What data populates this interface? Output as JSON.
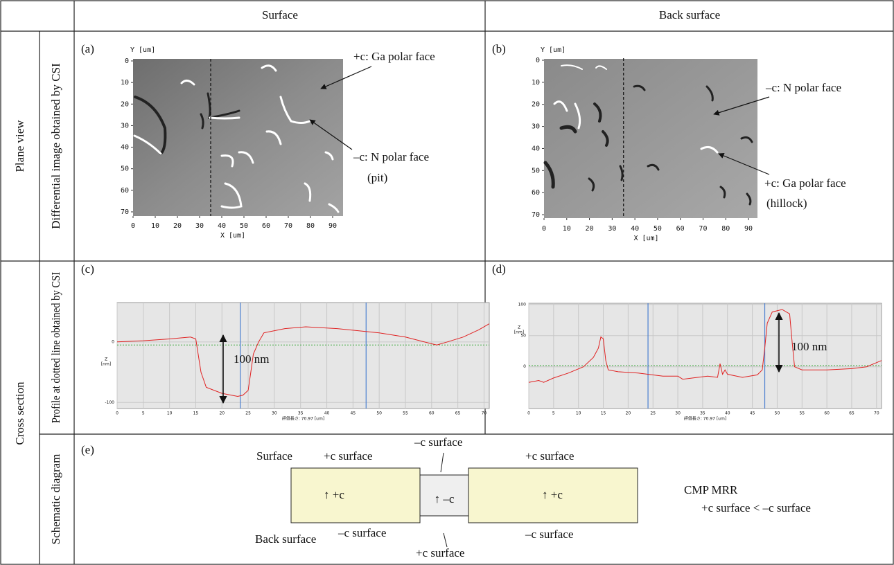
{
  "header": {
    "col1": "Surface",
    "col2": "Back surface"
  },
  "rows": {
    "plane_view": "Plane view",
    "cross_section": "Cross section",
    "differential": "Differential image obtained by CSI",
    "profile": "Profile at dotted line obtained by CSI",
    "schematic": "Schematic diagram"
  },
  "panels": {
    "a": {
      "label": "(a)",
      "y_axis": "Y [um]",
      "x_axis": "X [um]",
      "xticks": [
        0,
        10,
        20,
        30,
        40,
        50,
        60,
        70,
        80,
        90
      ],
      "yticks": [
        0,
        10,
        20,
        30,
        40,
        50,
        60,
        70
      ],
      "dotted_line_x": 35,
      "annotations": [
        "+c: Ga polar face",
        "–c: N polar face",
        "(pit)"
      ]
    },
    "b": {
      "label": "(b)",
      "y_axis": "Y [um]",
      "x_axis": "X [um]",
      "xticks": [
        0,
        10,
        20,
        30,
        40,
        50,
        60,
        70,
        80,
        90
      ],
      "yticks": [
        0,
        10,
        20,
        30,
        40,
        50,
        60,
        70
      ],
      "dotted_line_x": 35,
      "annotations": [
        "–c: N polar face",
        "+c: Ga polar face",
        "(hillock)"
      ]
    },
    "c": {
      "label": "(c)",
      "z_label": "Z",
      "z_unit": "[nm]",
      "x_axis": "評価長さ: 70.97 [um]",
      "annotation": "100 nm",
      "xlim": [
        0,
        71
      ],
      "ylim": [
        -110,
        65
      ],
      "xticks": [
        0,
        5,
        10,
        15,
        20,
        25,
        30,
        35,
        40,
        45,
        50,
        55,
        60,
        65,
        70
      ],
      "yticks": [
        0,
        -100
      ],
      "cursors": [
        23.5,
        47.5
      ],
      "reference": -5,
      "profile": {
        "x": [
          0,
          5,
          10,
          14,
          15,
          16,
          17,
          20,
          23,
          24,
          25,
          25.5,
          26,
          27,
          28,
          32,
          36,
          42,
          50,
          55,
          60,
          61,
          63,
          66,
          69,
          71
        ],
        "z": [
          0,
          2,
          5,
          8,
          5,
          -50,
          -75,
          -85,
          -90,
          -88,
          -80,
          -50,
          -20,
          0,
          15,
          22,
          25,
          22,
          15,
          8,
          -3,
          -5,
          0,
          8,
          20,
          30
        ]
      }
    },
    "d": {
      "label": "(d)",
      "z_label": "Z",
      "z_unit": "[nm]",
      "x_axis": "評価長さ: 70.97 [um]",
      "annotation": "100 nm",
      "xlim": [
        0,
        71
      ],
      "ylim": [
        -67,
        102
      ],
      "xticks": [
        0,
        5,
        10,
        15,
        20,
        25,
        30,
        35,
        40,
        45,
        50,
        55,
        60,
        65,
        70
      ],
      "yticks": [
        100,
        50,
        0
      ],
      "cursors": [
        24,
        47.5
      ],
      "reference": 2,
      "profile": {
        "x": [
          0,
          2,
          3,
          5,
          8,
          11,
          13,
          14,
          14.5,
          15,
          15.5,
          16,
          18,
          22,
          27,
          30,
          31,
          33,
          36,
          38,
          38.5,
          39,
          39.5,
          40,
          43,
          46,
          47,
          47.5,
          48,
          49,
          51,
          52.5,
          53,
          53.5,
          55,
          60,
          65,
          68,
          71
        ],
        "z": [
          -25,
          -22,
          -25,
          -18,
          -10,
          0,
          15,
          30,
          48,
          45,
          10,
          -5,
          -8,
          -10,
          -15,
          -15,
          -20,
          -18,
          -15,
          -17,
          5,
          -12,
          -5,
          -12,
          -17,
          -13,
          -5,
          30,
          70,
          88,
          92,
          85,
          40,
          0,
          -5,
          -5,
          -3,
          0,
          10
        ]
      }
    },
    "e": {
      "label": "(e)",
      "surface": "Surface",
      "back_surface": "Back surface",
      "top_left": "+c surface",
      "top_mid": "–c surface",
      "top_right": "+c surface",
      "bottom_left": "–c surface",
      "bottom_mid": "+c surface",
      "bottom_right": "–c surface",
      "box_left": "↑ +c",
      "box_mid": "↑ –c",
      "box_right": "↑ +c",
      "mrr_title": "CMP MRR",
      "mrr_relation": "+c surface < –c surface"
    }
  }
}
